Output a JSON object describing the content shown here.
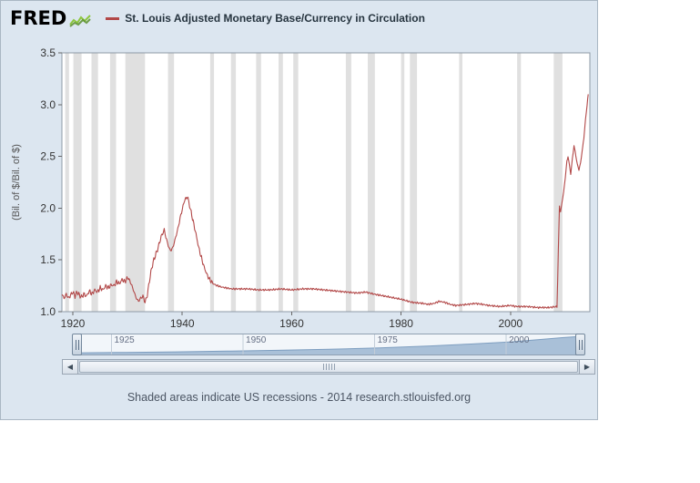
{
  "header": {
    "logo": "FRED",
    "title": "St. Louis Adjusted Monetary Base/Currency in Circulation"
  },
  "colors": {
    "line": "#b24848",
    "recession": "#e0e0e0",
    "panel_bg": "#dce6f0",
    "plot_border": "#8e9aa6",
    "slider_fill": "#a9c0d8",
    "slider_stroke": "#7e9ec0",
    "logo_green": "#8dc63f",
    "logo_green_dark": "#5b8f2c"
  },
  "chart_data": {
    "type": "line",
    "title": "St. Louis Adjusted Monetary Base/Currency in Circulation",
    "xlabel": "",
    "ylabel": "(Bil. of $/Bil. of $)",
    "x_range": [
      1918,
      2014.5
    ],
    "ylim": [
      1.0,
      3.5
    ],
    "y_ticks": [
      1.0,
      1.5,
      2.0,
      2.5,
      3.0,
      3.5
    ],
    "x_ticks": [
      1920,
      1940,
      1960,
      1980,
      2000
    ],
    "grid": false,
    "legend_position": "top",
    "recessions": [
      [
        1918.6,
        1919.3
      ],
      [
        1920.1,
        1921.6
      ],
      [
        1923.4,
        1924.6
      ],
      [
        1926.8,
        1927.9
      ],
      [
        1929.6,
        1933.2
      ],
      [
        1937.4,
        1938.5
      ],
      [
        1945.1,
        1945.8
      ],
      [
        1948.9,
        1949.8
      ],
      [
        1953.5,
        1954.4
      ],
      [
        1957.6,
        1958.4
      ],
      [
        1960.3,
        1961.2
      ],
      [
        1969.9,
        1970.9
      ],
      [
        1973.9,
        1975.2
      ],
      [
        1980.0,
        1980.6
      ],
      [
        1981.6,
        1982.9
      ],
      [
        1990.6,
        1991.2
      ],
      [
        2001.2,
        2001.9
      ],
      [
        2007.9,
        2009.5
      ]
    ],
    "noise": {
      "split_year": 1946,
      "amp_early": 0.015,
      "amp_late": 0.006
    },
    "series": [
      {
        "name": "St. Louis Adjusted Monetary Base/Currency in Circulation",
        "points": [
          [
            1918,
            1.17
          ],
          [
            1918.4,
            1.13
          ],
          [
            1918.8,
            1.17
          ],
          [
            1919.2,
            1.13
          ],
          [
            1919.6,
            1.16
          ],
          [
            1920,
            1.19
          ],
          [
            1920.4,
            1.15
          ],
          [
            1920.8,
            1.19
          ],
          [
            1921.2,
            1.16
          ],
          [
            1921.6,
            1.14
          ],
          [
            1922,
            1.17
          ],
          [
            1922.5,
            1.15
          ],
          [
            1923,
            1.2
          ],
          [
            1923.5,
            1.17
          ],
          [
            1924,
            1.21
          ],
          [
            1924.5,
            1.19
          ],
          [
            1925,
            1.23
          ],
          [
            1925.5,
            1.21
          ],
          [
            1926,
            1.25
          ],
          [
            1926.5,
            1.23
          ],
          [
            1927,
            1.26
          ],
          [
            1927.5,
            1.25
          ],
          [
            1928,
            1.29
          ],
          [
            1928.5,
            1.27
          ],
          [
            1929,
            1.31
          ],
          [
            1929.5,
            1.29
          ],
          [
            1930,
            1.33
          ],
          [
            1930.4,
            1.3
          ],
          [
            1930.8,
            1.25
          ],
          [
            1931.2,
            1.19
          ],
          [
            1931.6,
            1.13
          ],
          [
            1932,
            1.1
          ],
          [
            1932.4,
            1.13
          ],
          [
            1932.8,
            1.15
          ],
          [
            1933.2,
            1.09
          ],
          [
            1933.6,
            1.16
          ],
          [
            1934,
            1.3
          ],
          [
            1934.4,
            1.42
          ],
          [
            1934.8,
            1.5
          ],
          [
            1935.2,
            1.56
          ],
          [
            1935.6,
            1.62
          ],
          [
            1936,
            1.7
          ],
          [
            1936.4,
            1.76
          ],
          [
            1936.7,
            1.78
          ],
          [
            1937,
            1.73
          ],
          [
            1937.3,
            1.66
          ],
          [
            1937.6,
            1.61
          ],
          [
            1938,
            1.59
          ],
          [
            1938.4,
            1.64
          ],
          [
            1938.8,
            1.72
          ],
          [
            1939.2,
            1.8
          ],
          [
            1939.6,
            1.9
          ],
          [
            1940,
            1.99
          ],
          [
            1940.3,
            2.05
          ],
          [
            1940.6,
            2.09
          ],
          [
            1940.9,
            2.11
          ],
          [
            1941.2,
            2.06
          ],
          [
            1941.5,
            1.99
          ],
          [
            1942,
            1.87
          ],
          [
            1942.5,
            1.75
          ],
          [
            1943,
            1.62
          ],
          [
            1943.5,
            1.52
          ],
          [
            1944,
            1.43
          ],
          [
            1944.5,
            1.36
          ],
          [
            1945,
            1.31
          ],
          [
            1945.5,
            1.28
          ],
          [
            1946,
            1.26
          ],
          [
            1947,
            1.24
          ],
          [
            1948,
            1.23
          ],
          [
            1949,
            1.22
          ],
          [
            1950,
            1.22
          ],
          [
            1952,
            1.22
          ],
          [
            1954,
            1.21
          ],
          [
            1956,
            1.21
          ],
          [
            1958,
            1.22
          ],
          [
            1960,
            1.21
          ],
          [
            1962,
            1.22
          ],
          [
            1964,
            1.22
          ],
          [
            1966,
            1.21
          ],
          [
            1968,
            1.2
          ],
          [
            1970,
            1.19
          ],
          [
            1972,
            1.18
          ],
          [
            1973.5,
            1.19
          ],
          [
            1975,
            1.17
          ],
          [
            1976,
            1.16
          ],
          [
            1978,
            1.14
          ],
          [
            1980,
            1.12
          ],
          [
            1982,
            1.09
          ],
          [
            1984,
            1.08
          ],
          [
            1985,
            1.07
          ],
          [
            1986,
            1.08
          ],
          [
            1987,
            1.1
          ],
          [
            1988,
            1.09
          ],
          [
            1989,
            1.07
          ],
          [
            1990,
            1.06
          ],
          [
            1992,
            1.07
          ],
          [
            1993.5,
            1.08
          ],
          [
            1995,
            1.07
          ],
          [
            1996,
            1.06
          ],
          [
            1998,
            1.05
          ],
          [
            2000,
            1.06
          ],
          [
            2001,
            1.05
          ],
          [
            2003,
            1.05
          ],
          [
            2005,
            1.04
          ],
          [
            2007,
            1.04
          ],
          [
            2008.5,
            1.05
          ],
          [
            2008.75,
            1.6
          ],
          [
            2008.95,
            2.02
          ],
          [
            2009.15,
            1.96
          ],
          [
            2009.4,
            2.05
          ],
          [
            2009.7,
            2.15
          ],
          [
            2010,
            2.3
          ],
          [
            2010.3,
            2.45
          ],
          [
            2010.5,
            2.5
          ],
          [
            2010.8,
            2.4
          ],
          [
            2011,
            2.33
          ],
          [
            2011.3,
            2.48
          ],
          [
            2011.6,
            2.6
          ],
          [
            2011.9,
            2.52
          ],
          [
            2012.2,
            2.42
          ],
          [
            2012.5,
            2.37
          ],
          [
            2012.8,
            2.44
          ],
          [
            2013.1,
            2.55
          ],
          [
            2013.4,
            2.68
          ],
          [
            2013.7,
            2.85
          ],
          [
            2014,
            3.0
          ],
          [
            2014.2,
            3.1
          ]
        ]
      }
    ]
  },
  "slider": {
    "ticks": [
      {
        "label": "1925",
        "year": 1925
      },
      {
        "label": "1950",
        "year": 1950
      },
      {
        "label": "1975",
        "year": 1975
      },
      {
        "label": "2000",
        "year": 2000
      }
    ],
    "area": [
      [
        0,
        0.04
      ],
      [
        0.1,
        0.07
      ],
      [
        0.2,
        0.1
      ],
      [
        0.3,
        0.14
      ],
      [
        0.4,
        0.19
      ],
      [
        0.5,
        0.25
      ],
      [
        0.6,
        0.33
      ],
      [
        0.7,
        0.44
      ],
      [
        0.78,
        0.55
      ],
      [
        0.86,
        0.68
      ],
      [
        0.92,
        0.82
      ],
      [
        0.96,
        0.92
      ],
      [
        1,
        1.0
      ]
    ]
  },
  "scrollbar": {
    "left_arrow": "◀",
    "right_arrow": "▶"
  },
  "footer": {
    "note": "Shaded areas indicate US recessions - 2014 research.stlouisfed.org"
  }
}
